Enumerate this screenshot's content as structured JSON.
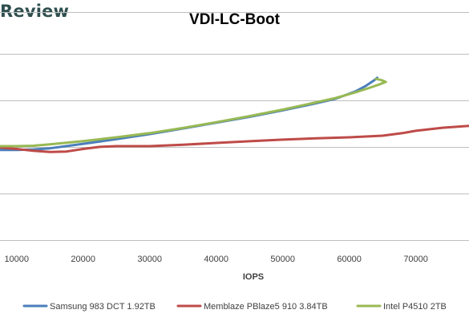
{
  "brand": {
    "logo_text": "Review"
  },
  "chart_data": {
    "type": "line",
    "title": "VDI-LC-Boot",
    "xlabel": "IOPS",
    "ylabel": "",
    "xlim": [
      7500,
      78000
    ],
    "ylim": [
      0,
      1
    ],
    "x_ticks": [
      10000,
      20000,
      30000,
      40000,
      50000,
      60000,
      70000
    ],
    "x_tick_labels": [
      "10000",
      "20000",
      "30000",
      "40000",
      "50000",
      "60000",
      "70000"
    ],
    "y_gridlines": [
      0.02,
      0.22,
      0.42,
      0.62,
      0.82,
      1.0
    ],
    "y_tick_labels_visible": false,
    "grid": true,
    "legend_position": "bottom",
    "series": [
      {
        "name": "Samsung 983 DCT 1.92TB",
        "color": "#4a7ebb",
        "points": [
          [
            7500,
            0.408
          ],
          [
            10000,
            0.408
          ],
          [
            12500,
            0.41
          ],
          [
            15000,
            0.415
          ],
          [
            20000,
            0.434
          ],
          [
            25000,
            0.454
          ],
          [
            30000,
            0.476
          ],
          [
            35000,
            0.5
          ],
          [
            40000,
            0.525
          ],
          [
            45000,
            0.55
          ],
          [
            50000,
            0.578
          ],
          [
            55000,
            0.608
          ],
          [
            58000,
            0.628
          ],
          [
            61000,
            0.66
          ],
          [
            62500,
            0.683
          ],
          [
            63700,
            0.706
          ],
          [
            64200,
            0.718
          ]
        ]
      },
      {
        "name": "Memblaze PBlaze5 910 3.84TB",
        "color": "#be4b48",
        "points": [
          [
            7500,
            0.418
          ],
          [
            10000,
            0.412
          ],
          [
            12500,
            0.404
          ],
          [
            15000,
            0.399
          ],
          [
            17500,
            0.401
          ],
          [
            20000,
            0.412
          ],
          [
            22500,
            0.421
          ],
          [
            25000,
            0.424
          ],
          [
            30000,
            0.424
          ],
          [
            35000,
            0.43
          ],
          [
            40000,
            0.438
          ],
          [
            45000,
            0.445
          ],
          [
            50000,
            0.452
          ],
          [
            55000,
            0.458
          ],
          [
            60000,
            0.462
          ],
          [
            65000,
            0.469
          ],
          [
            68000,
            0.48
          ],
          [
            70000,
            0.49
          ],
          [
            74000,
            0.503
          ],
          [
            78000,
            0.511
          ]
        ]
      },
      {
        "name": "Intel P4510 2TB",
        "color": "#98b954",
        "points": [
          [
            7500,
            0.424
          ],
          [
            10000,
            0.424
          ],
          [
            12500,
            0.426
          ],
          [
            15000,
            0.432
          ],
          [
            20000,
            0.446
          ],
          [
            25000,
            0.462
          ],
          [
            30000,
            0.48
          ],
          [
            35000,
            0.502
          ],
          [
            40000,
            0.527
          ],
          [
            45000,
            0.553
          ],
          [
            50000,
            0.581
          ],
          [
            55000,
            0.612
          ],
          [
            58000,
            0.631
          ],
          [
            61000,
            0.656
          ],
          [
            63000,
            0.674
          ],
          [
            64500,
            0.689
          ],
          [
            65500,
            0.7
          ],
          [
            64800,
            0.708
          ],
          [
            64000,
            0.713
          ]
        ]
      }
    ]
  }
}
